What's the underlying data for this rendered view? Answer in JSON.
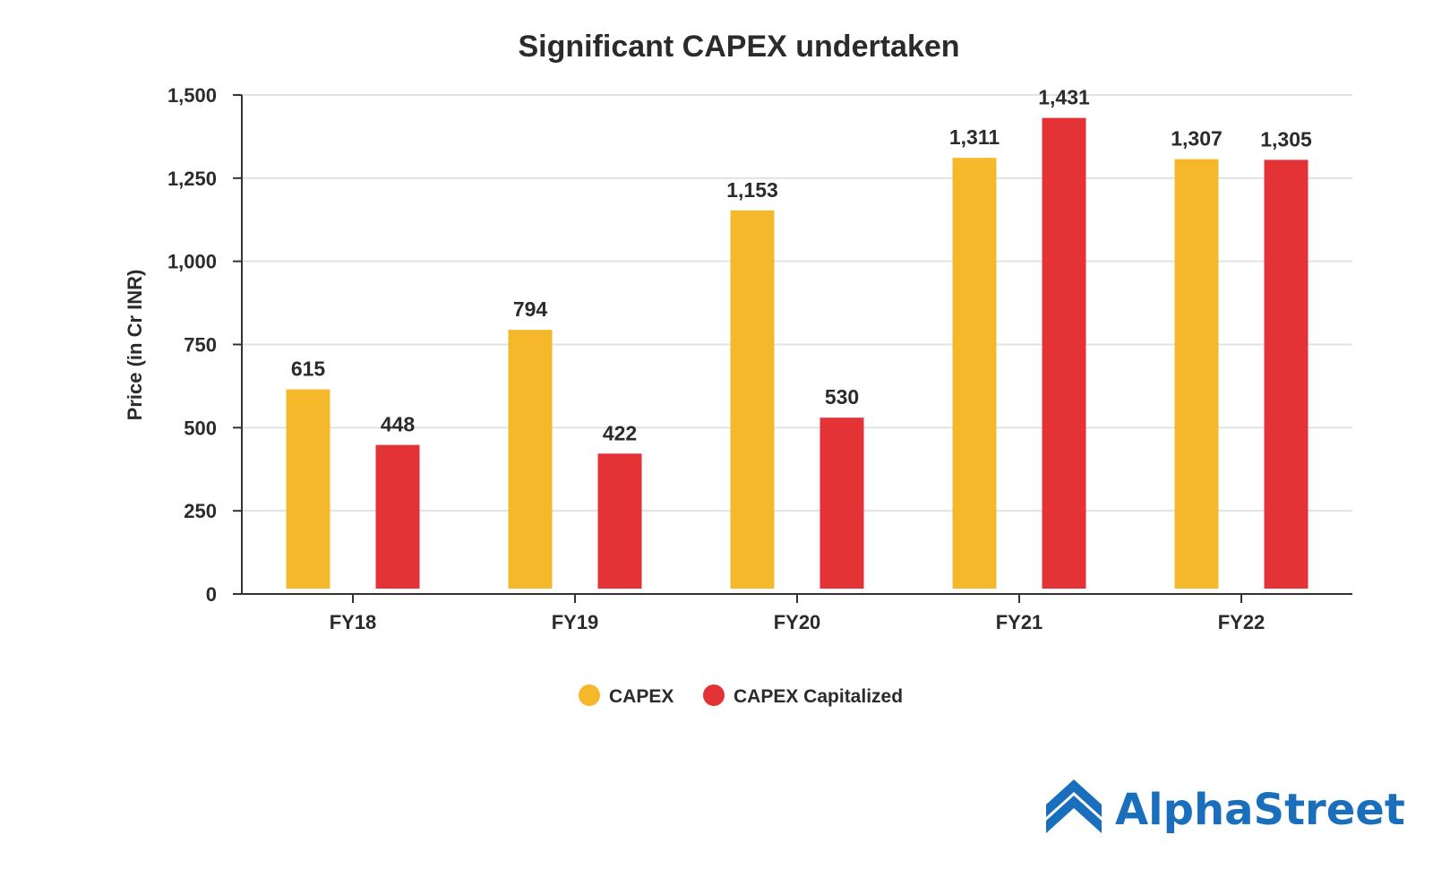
{
  "chart_data": {
    "type": "bar",
    "title": "Significant CAPEX undertaken",
    "ylabel": "Price (in Cr INR)",
    "xlabel": "",
    "ylim": [
      0,
      1500
    ],
    "yticks": [
      0,
      250,
      500,
      750,
      1000,
      1250,
      1500
    ],
    "ytick_labels": [
      "0",
      "250",
      "500",
      "750",
      "1,000",
      "1,250",
      "1,500"
    ],
    "grid": true,
    "legend_position": "bottom-center",
    "categories": [
      "FY18",
      "FY19",
      "FY20",
      "FY21",
      "FY22"
    ],
    "series": [
      {
        "name": "CAPEX",
        "color": "#f5b82a",
        "values": [
          615,
          794,
          1153,
          1311,
          1307
        ],
        "labels": [
          "615",
          "794",
          "1,153",
          "1,311",
          "1,307"
        ]
      },
      {
        "name": "CAPEX Capitalized",
        "color": "#e33336",
        "values": [
          448,
          422,
          530,
          1431,
          1305
        ],
        "labels": [
          "448",
          "422",
          "530",
          "1,431",
          "1,305"
        ]
      }
    ]
  },
  "brand": {
    "name": "AlphaStreet",
    "logo_icon": "alphastreet-logo-icon",
    "color": "#1a6fbd"
  }
}
